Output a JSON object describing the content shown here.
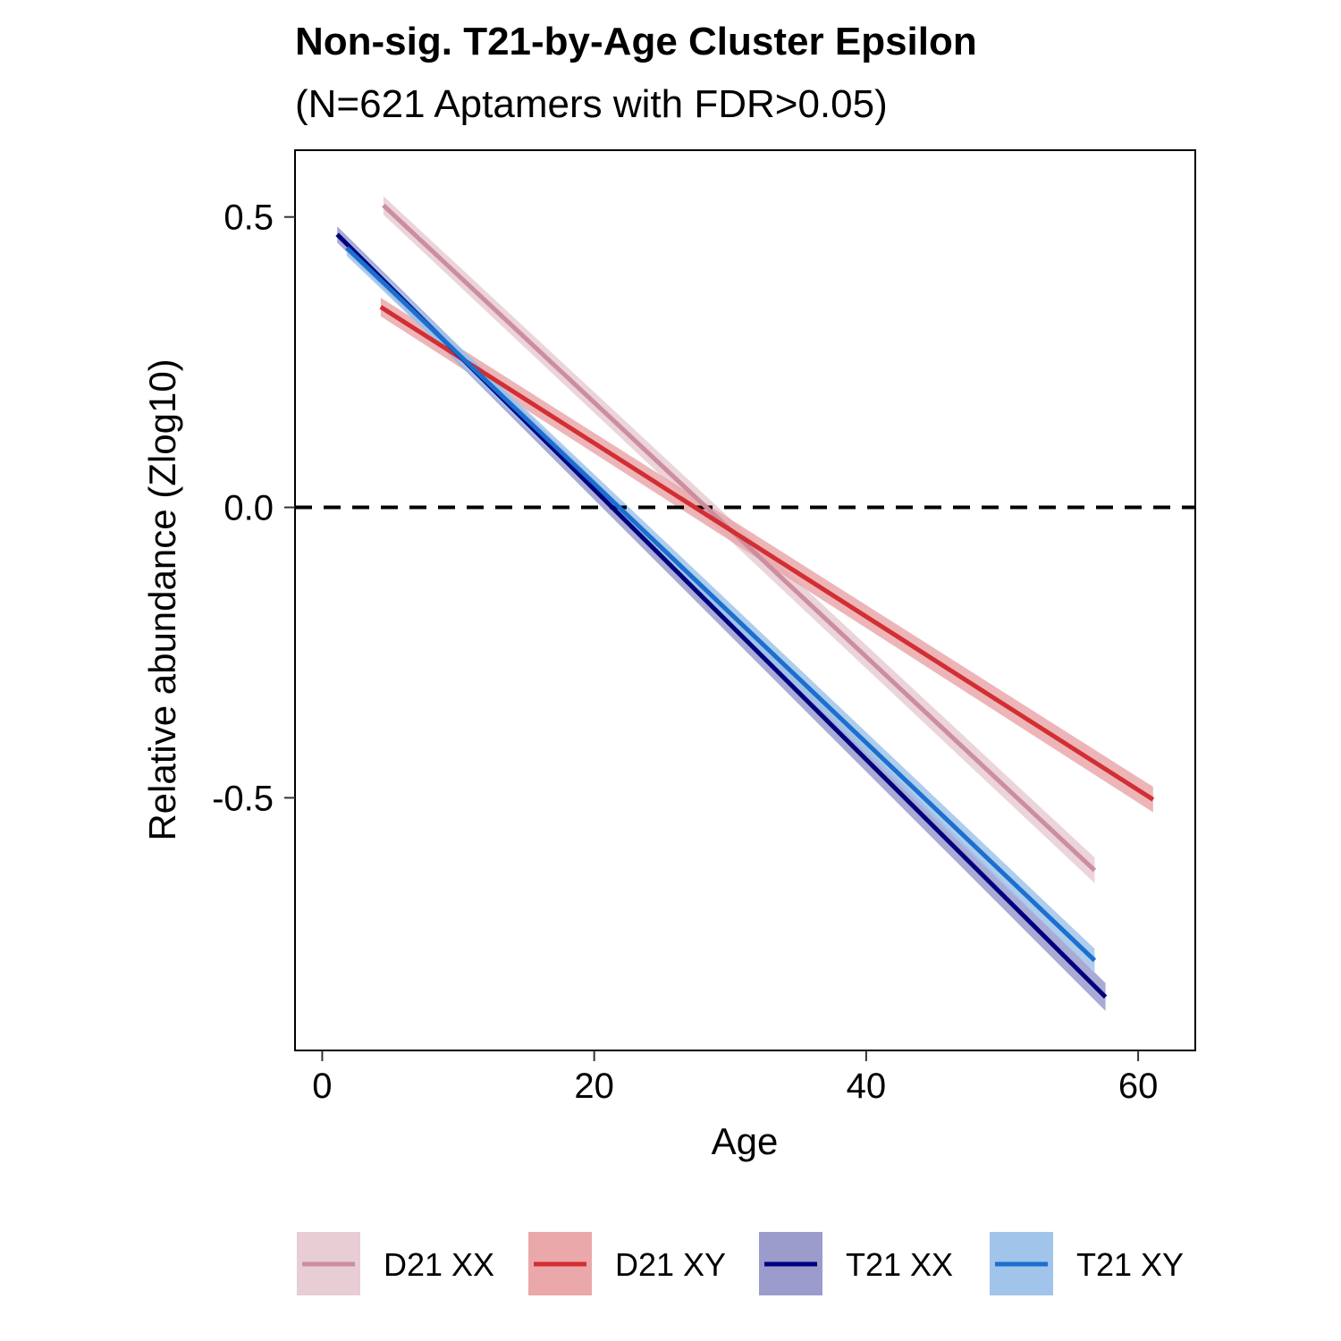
{
  "chart_data": {
    "type": "line",
    "title": "Non-sig. T21-by-Age Cluster Epsilon",
    "subtitle": "(N=621 Aptamers with FDR>0.05)",
    "xlabel": "Age",
    "ylabel": "Relative abundance (Zlog10)",
    "xlim": [
      -2,
      64.2
    ],
    "ylim": [
      -0.935,
      0.615
    ],
    "xticks": [
      0,
      20,
      40,
      60
    ],
    "xtick_labels": [
      "0",
      "20",
      "40",
      "60"
    ],
    "yticks": [
      -0.5,
      0.0,
      0.5
    ],
    "ytick_labels": [
      "-0.5",
      "0.0",
      "0.5"
    ],
    "reference_line": {
      "y": 0,
      "style": "dashed"
    },
    "grid": false,
    "legend_position": "bottom",
    "series": [
      {
        "name": "D21 XX",
        "color": "#CC8E9E",
        "band_color": "#E8CDD4",
        "x": [
          4.5,
          56.8
        ],
        "y": [
          0.52,
          -0.625
        ],
        "ci": [
          0.016,
          0.022
        ]
      },
      {
        "name": "D21 XY",
        "color": "#D22E33",
        "band_color": "#EAA8AA",
        "x": [
          4.3,
          61.1
        ],
        "y": [
          0.345,
          -0.503
        ],
        "ci": [
          0.016,
          0.022
        ]
      },
      {
        "name": "T21 XX",
        "color": "#00007F",
        "band_color": "#9B9CCC",
        "x": [
          1.1,
          57.6
        ],
        "y": [
          0.47,
          -0.843
        ],
        "ci": [
          0.014,
          0.024
        ]
      },
      {
        "name": "T21 XY",
        "color": "#1B6FCF",
        "band_color": "#A1C4EA",
        "x": [
          1.8,
          56.8
        ],
        "y": [
          0.447,
          -0.78
        ],
        "ci": [
          0.014,
          0.02
        ]
      }
    ]
  }
}
